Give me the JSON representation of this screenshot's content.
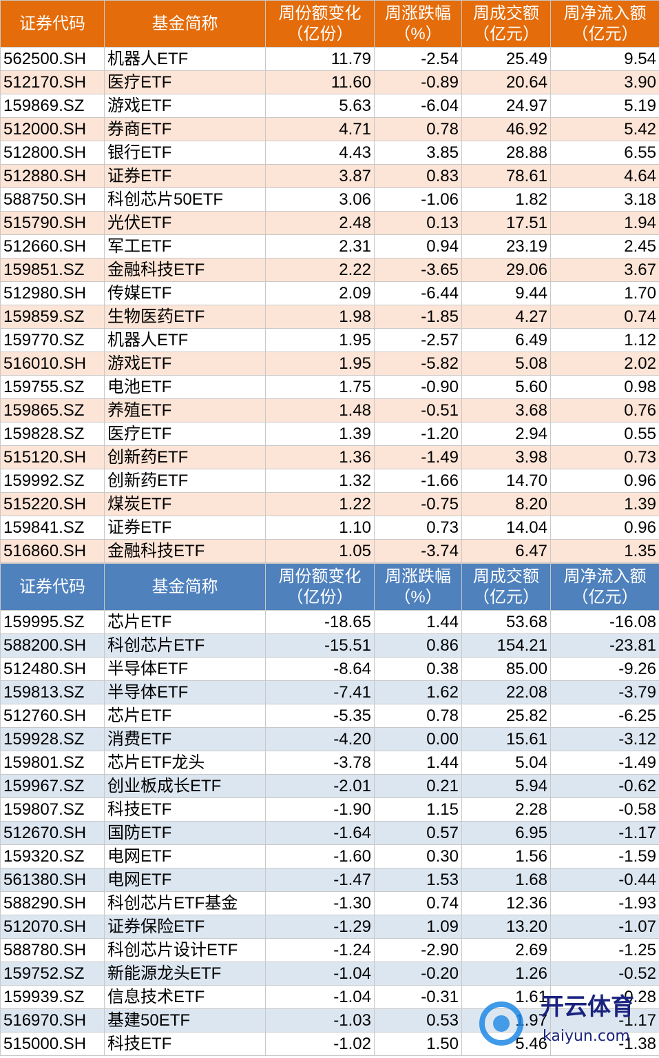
{
  "top": {
    "header": [
      [
        "证券代码"
      ],
      [
        "基金简称"
      ],
      [
        "周份额变化",
        "（亿份）"
      ],
      [
        "周涨跌幅",
        "（%）"
      ],
      [
        "周成交额",
        "（亿元）"
      ],
      [
        "周净流入额",
        "（亿元）"
      ]
    ],
    "rows": [
      [
        "562500.SH",
        "机器人ETF",
        "11.79",
        "-2.54",
        "25.49",
        "9.54"
      ],
      [
        "512170.SH",
        "医疗ETF",
        "11.60",
        "-0.89",
        "20.64",
        "3.90"
      ],
      [
        "159869.SZ",
        "游戏ETF",
        "5.63",
        "-6.04",
        "24.97",
        "5.19"
      ],
      [
        "512000.SH",
        "券商ETF",
        "4.71",
        "0.78",
        "46.92",
        "5.42"
      ],
      [
        "512800.SH",
        "银行ETF",
        "4.43",
        "3.85",
        "28.88",
        "6.55"
      ],
      [
        "512880.SH",
        "证券ETF",
        "3.87",
        "0.83",
        "78.61",
        "4.64"
      ],
      [
        "588750.SH",
        "科创芯片50ETF",
        "3.06",
        "-1.06",
        "1.82",
        "3.18"
      ],
      [
        "515790.SH",
        "光伏ETF",
        "2.48",
        "0.13",
        "17.51",
        "1.94"
      ],
      [
        "512660.SH",
        "军工ETF",
        "2.31",
        "0.94",
        "23.19",
        "2.45"
      ],
      [
        "159851.SZ",
        "金融科技ETF",
        "2.22",
        "-3.65",
        "29.06",
        "3.67"
      ],
      [
        "512980.SH",
        "传媒ETF",
        "2.09",
        "-6.44",
        "9.44",
        "1.70"
      ],
      [
        "159859.SZ",
        "生物医药ETF",
        "1.98",
        "-1.85",
        "4.27",
        "0.74"
      ],
      [
        "159770.SZ",
        "机器人ETF",
        "1.95",
        "-2.57",
        "6.49",
        "1.12"
      ],
      [
        "516010.SH",
        "游戏ETF",
        "1.95",
        "-5.82",
        "5.08",
        "2.02"
      ],
      [
        "159755.SZ",
        "电池ETF",
        "1.75",
        "-0.90",
        "5.60",
        "0.98"
      ],
      [
        "159865.SZ",
        "养殖ETF",
        "1.48",
        "-0.51",
        "3.68",
        "0.76"
      ],
      [
        "159828.SZ",
        "医疗ETF",
        "1.39",
        "-1.20",
        "2.94",
        "0.55"
      ],
      [
        "515120.SH",
        "创新药ETF",
        "1.36",
        "-1.49",
        "3.98",
        "0.73"
      ],
      [
        "159992.SZ",
        "创新药ETF",
        "1.32",
        "-1.66",
        "14.70",
        "0.96"
      ],
      [
        "515220.SH",
        "煤炭ETF",
        "1.22",
        "-0.75",
        "8.20",
        "1.39"
      ],
      [
        "159841.SZ",
        "证券ETF",
        "1.10",
        "0.73",
        "14.04",
        "0.96"
      ],
      [
        "516860.SH",
        "金融科技ETF",
        "1.05",
        "-3.74",
        "6.47",
        "1.35"
      ]
    ]
  },
  "bottom": {
    "header": [
      [
        "证券代码"
      ],
      [
        "基金简称"
      ],
      [
        "周份额变化",
        "（亿份）"
      ],
      [
        "周涨跌幅",
        "（%）"
      ],
      [
        "周成交额",
        "（亿元）"
      ],
      [
        "周净流入额",
        "（亿元）"
      ]
    ],
    "rows": [
      [
        "159995.SZ",
        "芯片ETF",
        "-18.65",
        "1.44",
        "53.68",
        "-16.08"
      ],
      [
        "588200.SH",
        "科创芯片ETF",
        "-15.51",
        "0.86",
        "154.21",
        "-23.81"
      ],
      [
        "512480.SH",
        "半导体ETF",
        "-8.64",
        "0.38",
        "85.00",
        "-9.26"
      ],
      [
        "159813.SZ",
        "半导体ETF",
        "-7.41",
        "1.62",
        "22.08",
        "-3.79"
      ],
      [
        "512760.SH",
        "芯片ETF",
        "-5.35",
        "0.78",
        "25.82",
        "-6.25"
      ],
      [
        "159928.SZ",
        "消费ETF",
        "-4.20",
        "0.00",
        "15.61",
        "-3.12"
      ],
      [
        "159801.SZ",
        "芯片ETF龙头",
        "-3.78",
        "1.44",
        "5.04",
        "-1.49"
      ],
      [
        "159967.SZ",
        "创业板成长ETF",
        "-2.01",
        "0.21",
        "5.94",
        "-0.62"
      ],
      [
        "159807.SZ",
        "科技ETF",
        "-1.90",
        "1.15",
        "2.28",
        "-0.58"
      ],
      [
        "512670.SH",
        "国防ETF",
        "-1.64",
        "0.57",
        "6.95",
        "-1.17"
      ],
      [
        "159320.SZ",
        "电网ETF",
        "-1.60",
        "0.30",
        "1.56",
        "-1.59"
      ],
      [
        "561380.SH",
        "电网ETF",
        "-1.47",
        "1.53",
        "1.68",
        "-0.44"
      ],
      [
        "588290.SH",
        "科创芯片ETF基金",
        "-1.30",
        "0.74",
        "12.36",
        "-1.93"
      ],
      [
        "512070.SH",
        "证券保险ETF",
        "-1.29",
        "1.09",
        "13.20",
        "-1.07"
      ],
      [
        "588780.SH",
        "科创芯片设计ETF",
        "-1.24",
        "-2.90",
        "2.69",
        "-1.25"
      ],
      [
        "159752.SZ",
        "新能源龙头ETF",
        "-1.04",
        "-0.20",
        "1.26",
        "-0.52"
      ],
      [
        "159939.SZ",
        "信息技术ETF",
        "-1.04",
        "-0.31",
        "1.61",
        "-0.28"
      ],
      [
        "516970.SH",
        "基建50ETF",
        "-1.03",
        "0.53",
        "1.97",
        "-1.17"
      ],
      [
        "515000.SH",
        "科技ETF",
        "-1.02",
        "1.50",
        "5.46",
        "-1.38"
      ]
    ]
  },
  "watermark": {
    "brand": "开云体育",
    "url": "kaiyun.com"
  }
}
